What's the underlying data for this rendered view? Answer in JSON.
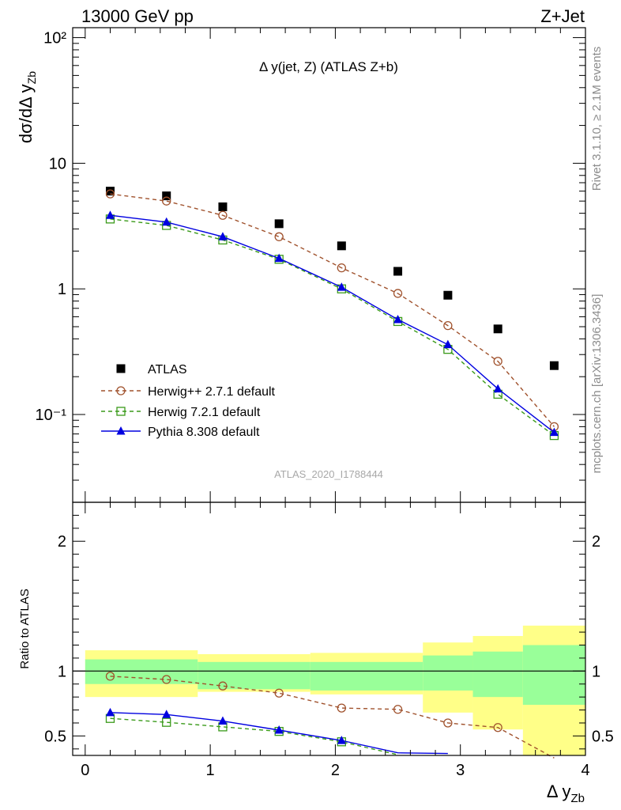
{
  "header": {
    "left": "13000 GeV pp",
    "right": "Z+Jet"
  },
  "side_text": {
    "upper": "Rivet 3.1.10, ≥ 2.1M events",
    "lower": "mcplots.cern.ch [arXiv:1306.3436]"
  },
  "watermark": "ATLAS_2020_I1788444",
  "colors": {
    "data": "#000000",
    "herwigpp": "#a0522d",
    "herwig7": "#3a9a1a",
    "pythia": "#0000e0",
    "band_inner": "#99ff99",
    "band_outer": "#ffff88"
  },
  "chart_data": [
    {
      "type": "scatter",
      "title": "Δ y(jet, Z) (ATLAS Z+b)",
      "ylabel": "dσ/dΔ y",
      "ylabel_sub": "Zb",
      "yscale": "log",
      "ylim": [
        0.02,
        120
      ],
      "xlim": [
        -0.1,
        4.0
      ],
      "ytick_labels": [
        "10²",
        "10",
        "1",
        "10⁻¹"
      ],
      "legend_position": "lower-left",
      "series": [
        {
          "name": "ATLAS",
          "style": "data",
          "x": [
            0.2,
            0.65,
            1.1,
            1.55,
            2.05,
            2.5,
            2.9,
            3.3,
            3.75
          ],
          "y": [
            6.0,
            5.5,
            4.5,
            3.3,
            2.2,
            1.38,
            0.89,
            0.48,
            0.245
          ]
        },
        {
          "name": "Herwig++ 2.7.1 default",
          "style": "herwigpp",
          "x": [
            0.2,
            0.65,
            1.1,
            1.55,
            2.05,
            2.5,
            2.9,
            3.3,
            3.75
          ],
          "y": [
            5.7,
            5.0,
            3.85,
            2.6,
            1.47,
            0.92,
            0.51,
            0.265,
            0.08
          ]
        },
        {
          "name": "Herwig 7.2.1 default",
          "style": "herwig7",
          "x": [
            0.2,
            0.65,
            1.1,
            1.55,
            2.05,
            2.5,
            2.9,
            3.3,
            3.75
          ],
          "y": [
            3.6,
            3.2,
            2.45,
            1.72,
            1.0,
            0.55,
            0.33,
            0.145,
            0.068
          ]
        },
        {
          "name": "Pythia 8.308 default",
          "style": "pythia",
          "x": [
            0.2,
            0.65,
            1.1,
            1.55,
            2.05,
            2.5,
            2.9,
            3.3,
            3.75
          ],
          "y": [
            3.85,
            3.4,
            2.6,
            1.75,
            1.03,
            0.57,
            0.36,
            0.16,
            0.072
          ]
        }
      ]
    },
    {
      "type": "line",
      "ylabel": "Ratio to ATLAS",
      "xlabel": "Δ y",
      "xlabel_sub": "Zb",
      "ylim": [
        0.35,
        2.3
      ],
      "xlim": [
        -0.1,
        4.0
      ],
      "xticks": [
        "0",
        "1",
        "2",
        "3",
        "4"
      ],
      "yticks": [
        "0.5",
        "1",
        "2"
      ],
      "reference": 1,
      "bins": [
        {
          "lo": 0.0,
          "hi": 0.9,
          "inner": [
            0.9,
            1.09
          ],
          "outer": [
            0.8,
            1.16
          ]
        },
        {
          "lo": 0.9,
          "hi": 1.8,
          "inner": [
            0.86,
            1.07
          ],
          "outer": [
            0.84,
            1.13
          ]
        },
        {
          "lo": 1.8,
          "hi": 2.7,
          "inner": [
            0.85,
            1.07
          ],
          "outer": [
            0.82,
            1.14
          ]
        },
        {
          "lo": 2.7,
          "hi": 3.1,
          "inner": [
            0.85,
            1.12
          ],
          "outer": [
            0.68,
            1.22
          ]
        },
        {
          "lo": 3.1,
          "hi": 3.5,
          "inner": [
            0.8,
            1.15
          ],
          "outer": [
            0.55,
            1.27
          ]
        },
        {
          "lo": 3.5,
          "hi": 4.0,
          "inner": [
            0.74,
            1.2
          ],
          "outer": [
            0.3,
            1.35
          ]
        }
      ],
      "series": [
        {
          "name": "Herwig++ 2.7.1 default",
          "style": "herwigpp",
          "x": [
            0.2,
            0.65,
            1.1,
            1.55,
            2.05,
            2.5,
            2.9,
            3.3,
            3.75
          ],
          "y": [
            0.96,
            0.935,
            0.885,
            0.83,
            0.715,
            0.705,
            0.6,
            0.565,
            0.33
          ]
        },
        {
          "name": "Herwig 7.2.1 default",
          "style": "herwig7",
          "x": [
            0.2,
            0.65,
            1.1,
            1.55,
            2.05,
            2.5
          ],
          "y": [
            0.635,
            0.605,
            0.57,
            0.535,
            0.455,
            0.355
          ]
        },
        {
          "name": "Pythia 8.308 default",
          "style": "pythia",
          "x": [
            0.2,
            0.65,
            1.1,
            1.55,
            2.05,
            2.5,
            2.9
          ],
          "y": [
            0.68,
            0.665,
            0.615,
            0.545,
            0.465,
            0.37,
            0.365
          ]
        }
      ]
    }
  ]
}
